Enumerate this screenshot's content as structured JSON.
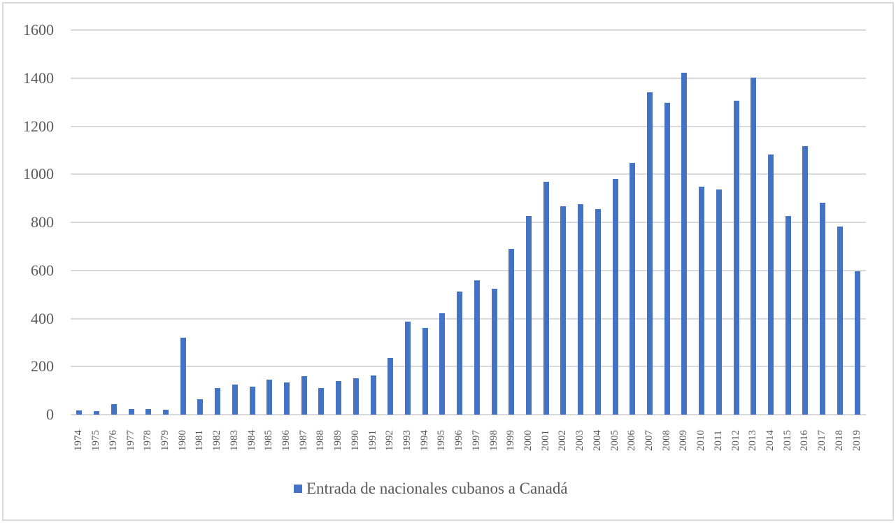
{
  "chart_data": {
    "type": "bar",
    "title": "",
    "xlabel": "",
    "ylabel": "",
    "ylim": [
      0,
      1600
    ],
    "yticks": [
      0,
      200,
      400,
      600,
      800,
      1000,
      1200,
      1400,
      1600
    ],
    "grid": true,
    "legend_position": "bottom",
    "bar_color": "#4472c4",
    "categories": [
      "1974",
      "1975",
      "1976",
      "1977",
      "1978",
      "1979",
      "1980",
      "1981",
      "1982",
      "1983",
      "1984",
      "1985",
      "1986",
      "1987",
      "1988",
      "1989",
      "1990",
      "1991",
      "1992",
      "1993",
      "1994",
      "1995",
      "1996",
      "1997",
      "1998",
      "1999",
      "2000",
      "2001",
      "2002",
      "2003",
      "2004",
      "2005",
      "2006",
      "2007",
      "2008",
      "2009",
      "2010",
      "2011",
      "2012",
      "2013",
      "2014",
      "2015",
      "2016",
      "2017",
      "2018",
      "2019"
    ],
    "series": [
      {
        "name": "Entrada de nacionales cubanos a Canadá",
        "values": [
          18,
          14,
          45,
          24,
          22,
          19,
          320,
          65,
          112,
          125,
          116,
          145,
          135,
          160,
          112,
          140,
          152,
          162,
          237,
          388,
          362,
          423,
          512,
          560,
          525,
          690,
          826,
          968,
          866,
          877,
          856,
          980,
          1046,
          1340,
          1297,
          1423,
          948,
          938,
          1306,
          1403,
          1083,
          826,
          1118,
          882,
          782,
          596
        ]
      }
    ]
  },
  "legend": {
    "label": "Entrada de nacionales cubanos a Canadá"
  }
}
